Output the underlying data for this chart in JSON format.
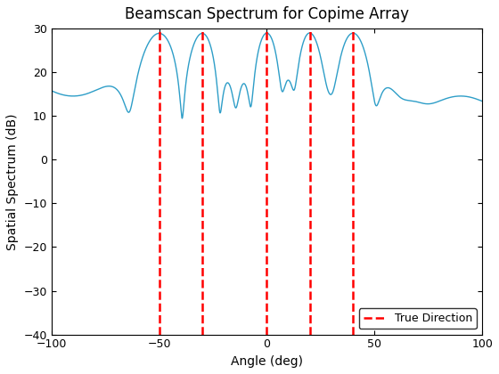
{
  "title": "Beamscan Spectrum for Copime Array",
  "xlabel": "Angle (deg)",
  "ylabel": "Spatial Spectrum (dB)",
  "xlim": [
    -100,
    100
  ],
  "ylim": [
    -40,
    30
  ],
  "xticks": [
    -100,
    -50,
    0,
    50,
    100
  ],
  "yticks": [
    -40,
    -30,
    -20,
    -10,
    0,
    10,
    20,
    30
  ],
  "true_directions": [
    -50,
    -30,
    0,
    20,
    40
  ],
  "line_color": "#2E9EC8",
  "vline_color": "red",
  "background_color": "#ffffff",
  "title_fontsize": 12,
  "label_fontsize": 10
}
